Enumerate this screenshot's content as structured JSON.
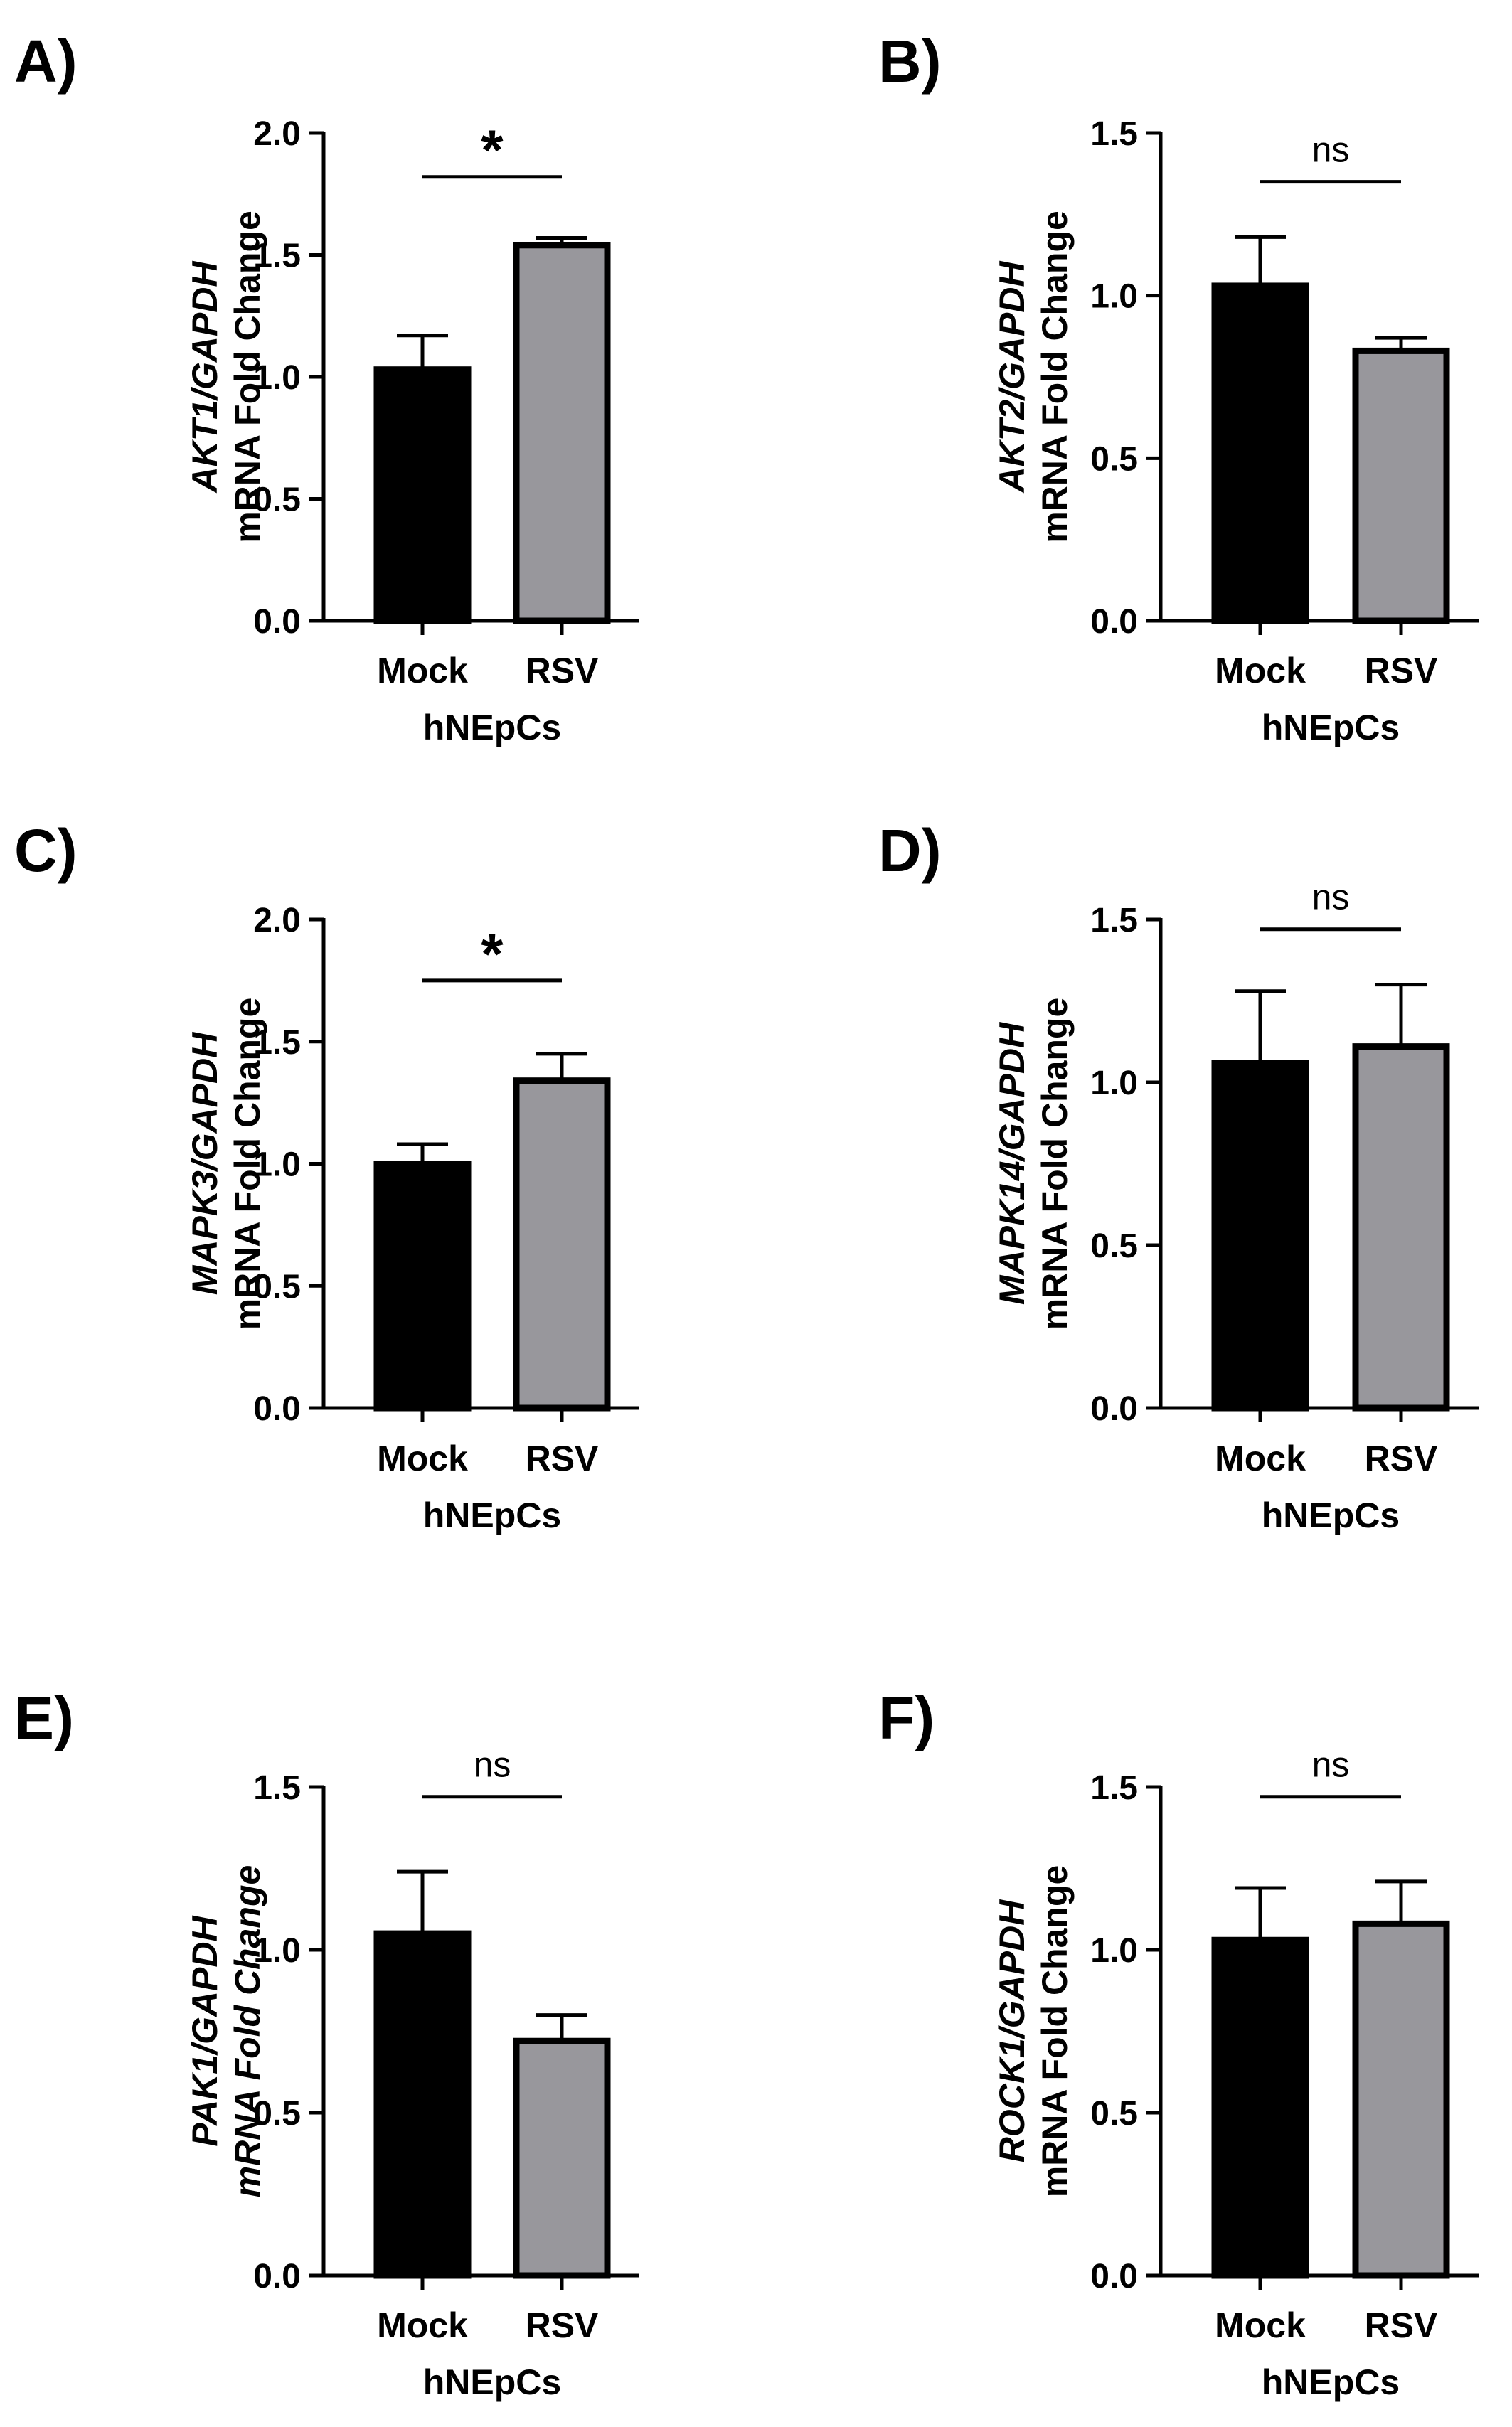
{
  "colors": {
    "Mock": "#000000",
    "RSV": "#98979c",
    "axis": "#000000"
  },
  "chart_data": [
    {
      "panel": "A)",
      "type": "bar",
      "categories": [
        "Mock",
        "RSV"
      ],
      "values": [
        1.03,
        1.54
      ],
      "errors": [
        0.14,
        0.03
      ],
      "ylabel_gene": "AKT1/GAPDH",
      "ylabel": "mRNA Fold Change",
      "ylabel_italic": false,
      "xlabel": "hNEpCs",
      "ylim": [
        0,
        2.0
      ],
      "ticks": [
        "0.0",
        "0.5",
        "1.0",
        "1.5",
        "2.0"
      ],
      "significance": "*",
      "significance_y": 1.82
    },
    {
      "panel": "B)",
      "type": "bar",
      "categories": [
        "Mock",
        "RSV"
      ],
      "values": [
        1.03,
        0.83
      ],
      "errors": [
        0.15,
        0.04
      ],
      "ylabel_gene": "AKT2/GAPDH",
      "ylabel": "mRNA Fold Change",
      "ylabel_italic": false,
      "xlabel": "hNEpCs",
      "ylim": [
        0,
        1.5
      ],
      "ticks": [
        "0.0",
        "0.5",
        "1.0",
        "1.5"
      ],
      "significance": "ns",
      "significance_y": 1.35
    },
    {
      "panel": "C)",
      "type": "bar",
      "categories": [
        "Mock",
        "RSV"
      ],
      "values": [
        1.0,
        1.34
      ],
      "errors": [
        0.08,
        0.11
      ],
      "ylabel_gene": "MAPK3/GAPDH",
      "ylabel": "mRNA Fold Change",
      "ylabel_italic": false,
      "xlabel": "hNEpCs",
      "ylim": [
        0,
        2.0
      ],
      "ticks": [
        "0.0",
        "0.5",
        "1.0",
        "1.5",
        "2.0"
      ],
      "significance": "*",
      "significance_y": 1.75
    },
    {
      "panel": "D)",
      "type": "bar",
      "categories": [
        "Mock",
        "RSV"
      ],
      "values": [
        1.06,
        1.11
      ],
      "errors": [
        0.22,
        0.19
      ],
      "ylabel_gene": "MAPK14/GAPDH",
      "ylabel": "mRNA Fold Change",
      "ylabel_italic": false,
      "xlabel": "hNEpCs",
      "ylim": [
        0,
        1.5
      ],
      "ticks": [
        "0.0",
        "0.5",
        "1.0",
        "1.5"
      ],
      "significance": "ns",
      "significance_y": 1.47
    },
    {
      "panel": "E)",
      "type": "bar",
      "categories": [
        "Mock",
        "RSV"
      ],
      "values": [
        1.05,
        0.72
      ],
      "errors": [
        0.19,
        0.08
      ],
      "ylabel_gene": "PAK1/GAPDH",
      "ylabel": "mRNA Fold Change",
      "ylabel_italic": true,
      "xlabel": "hNEpCs",
      "ylim": [
        0,
        1.5
      ],
      "ticks": [
        "0.0",
        "0.5",
        "1.0",
        "1.5"
      ],
      "significance": "ns",
      "significance_y": 1.47
    },
    {
      "panel": "F)",
      "type": "bar",
      "categories": [
        "Mock",
        "RSV"
      ],
      "values": [
        1.03,
        1.08
      ],
      "errors": [
        0.16,
        0.13
      ],
      "ylabel_gene": "ROCK1/GAPDH",
      "ylabel": "mRNA Fold Change",
      "ylabel_italic": false,
      "xlabel": "hNEpCs",
      "ylim": [
        0,
        1.5
      ],
      "ticks": [
        "0.0",
        "0.5",
        "1.0",
        "1.5"
      ],
      "significance": "ns",
      "significance_y": 1.47
    }
  ]
}
